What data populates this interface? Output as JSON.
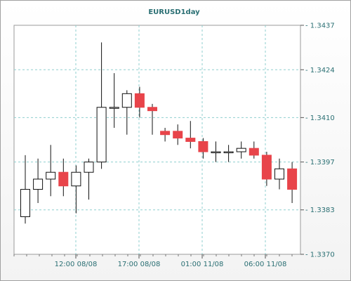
{
  "chart_data": {
    "type": "candlestick",
    "title": "EURUSD1day",
    "x_tick_labels": [
      "12:00 08/08",
      "17:00 08/08",
      "01:00 11/08",
      "06:00 11/08"
    ],
    "ylim": [
      1.337,
      1.3437
    ],
    "y_ticks": [
      1.3437,
      1.3424,
      1.341,
      1.3397,
      1.3383,
      1.337
    ],
    "grid": true,
    "up_color": "#ffffff",
    "down_color": "#e8444a",
    "candles": [
      {
        "o": 1.3381,
        "h": 1.3399,
        "l": 1.3379,
        "c": 1.3389
      },
      {
        "o": 1.3389,
        "h": 1.3398,
        "l": 1.3385,
        "c": 1.3392
      },
      {
        "o": 1.3392,
        "h": 1.3402,
        "l": 1.3387,
        "c": 1.3394
      },
      {
        "o": 1.3394,
        "h": 1.3398,
        "l": 1.3387,
        "c": 1.339
      },
      {
        "o": 1.339,
        "h": 1.3396,
        "l": 1.3382,
        "c": 1.3394
      },
      {
        "o": 1.3394,
        "h": 1.3398,
        "l": 1.3386,
        "c": 1.3397
      },
      {
        "o": 1.3397,
        "h": 1.3432,
        "l": 1.3395,
        "c": 1.3413
      },
      {
        "o": 1.3413,
        "h": 1.3423,
        "l": 1.3407,
        "c": 1.3413
      },
      {
        "o": 1.3413,
        "h": 1.3418,
        "l": 1.3405,
        "c": 1.3417
      },
      {
        "o": 1.3417,
        "h": 1.3419,
        "l": 1.341,
        "c": 1.3413
      },
      {
        "o": 1.3413,
        "h": 1.3414,
        "l": 1.3405,
        "c": 1.3412
      },
      {
        "o": 1.3406,
        "h": 1.3407,
        "l": 1.3403,
        "c": 1.3405
      },
      {
        "o": 1.3406,
        "h": 1.3408,
        "l": 1.3402,
        "c": 1.3404
      },
      {
        "o": 1.3404,
        "h": 1.3409,
        "l": 1.3401,
        "c": 1.3403
      },
      {
        "o": 1.3403,
        "h": 1.3404,
        "l": 1.3398,
        "c": 1.34
      },
      {
        "o": 1.34,
        "h": 1.3403,
        "l": 1.3397,
        "c": 1.34
      },
      {
        "o": 1.34,
        "h": 1.3402,
        "l": 1.3397,
        "c": 1.34
      },
      {
        "o": 1.34,
        "h": 1.3403,
        "l": 1.3398,
        "c": 1.3401
      },
      {
        "o": 1.3401,
        "h": 1.3403,
        "l": 1.3398,
        "c": 1.3399
      },
      {
        "o": 1.3399,
        "h": 1.34,
        "l": 1.339,
        "c": 1.3392
      },
      {
        "o": 1.3392,
        "h": 1.3398,
        "l": 1.3389,
        "c": 1.3395
      },
      {
        "o": 1.3395,
        "h": 1.3397,
        "l": 1.3385,
        "c": 1.3389
      }
    ]
  }
}
